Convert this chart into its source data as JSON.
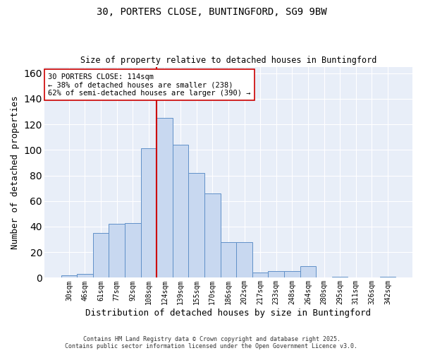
{
  "title_line1": "30, PORTERS CLOSE, BUNTINGFORD, SG9 9BW",
  "title_line2": "Size of property relative to detached houses in Buntingford",
  "xlabel": "Distribution of detached houses by size in Buntingford",
  "ylabel": "Number of detached properties",
  "bar_labels": [
    "30sqm",
    "46sqm",
    "61sqm",
    "77sqm",
    "92sqm",
    "108sqm",
    "124sqm",
    "139sqm",
    "155sqm",
    "170sqm",
    "186sqm",
    "202sqm",
    "217sqm",
    "233sqm",
    "248sqm",
    "264sqm",
    "280sqm",
    "295sqm",
    "311sqm",
    "326sqm",
    "342sqm"
  ],
  "bar_values": [
    2,
    3,
    35,
    42,
    43,
    101,
    125,
    104,
    82,
    66,
    28,
    28,
    4,
    5,
    5,
    9,
    0,
    1,
    0,
    0,
    1
  ],
  "bar_color": "#c8d8f0",
  "bar_edge_color": "#6090c8",
  "vline_color": "#cc0000",
  "annotation_text": "30 PORTERS CLOSE: 114sqm\n← 38% of detached houses are smaller (238)\n62% of semi-detached houses are larger (390) →",
  "annotation_box_color": "white",
  "annotation_box_edge_color": "#cc0000",
  "ylim": [
    0,
    165
  ],
  "yticks": [
    0,
    20,
    40,
    60,
    80,
    100,
    120,
    140,
    160
  ],
  "background_color": "#e8eef8",
  "grid_color": "#ffffff",
  "footer_line1": "Contains HM Land Registry data © Crown copyright and database right 2025.",
  "footer_line2": "Contains public sector information licensed under the Open Government Licence v3.0."
}
